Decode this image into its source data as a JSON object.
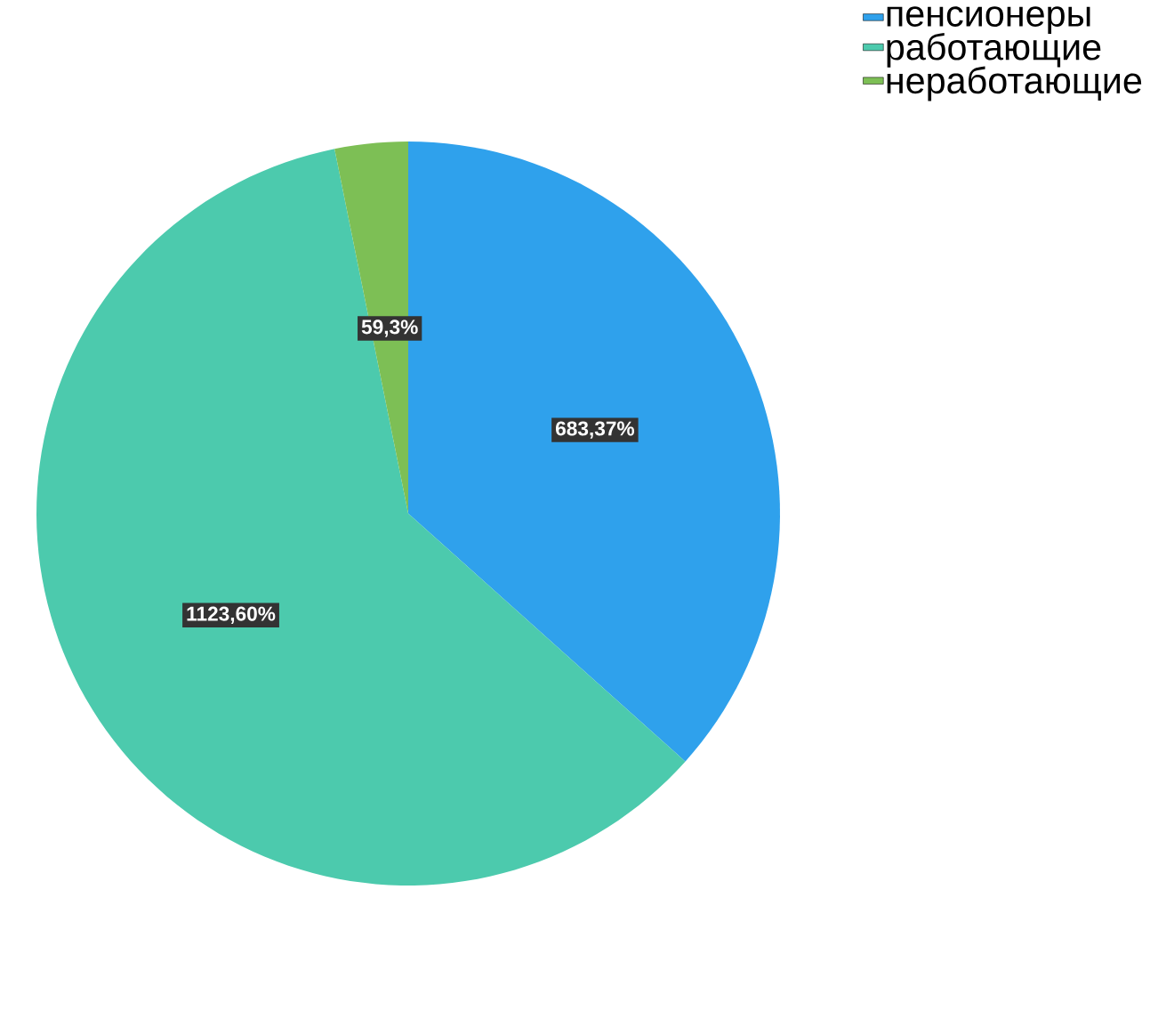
{
  "chart_data": {
    "type": "pie",
    "categories": [
      "пенсионеры",
      "работающие",
      "неработающие"
    ],
    "values": [
      683.37,
      1123.6,
      59.3
    ],
    "value_labels": [
      "683,37%",
      "1123,60%",
      "59,3%"
    ],
    "colors": [
      "#2fa1ec",
      "#4ccaad",
      "#7dbf55"
    ],
    "legend": "top right"
  }
}
